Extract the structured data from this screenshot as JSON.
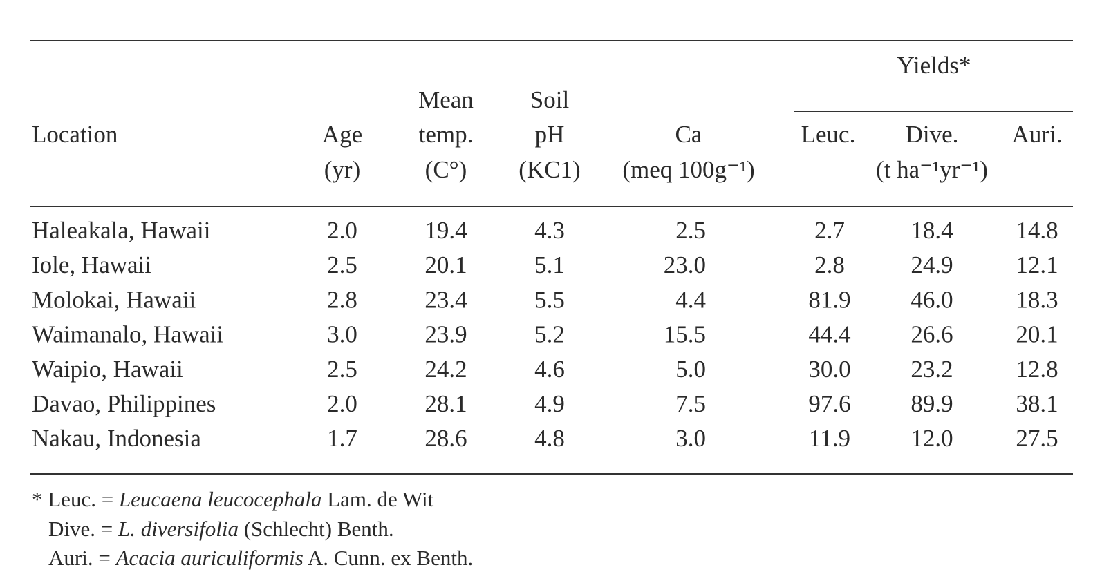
{
  "table": {
    "header": {
      "group": "Yields*",
      "columns": [
        {
          "lines": [
            "Location"
          ]
        },
        {
          "lines": [
            "Age",
            "(yr)"
          ]
        },
        {
          "lines": [
            "Mean",
            "temp.",
            "(C°)"
          ]
        },
        {
          "lines": [
            "Soil",
            "pH",
            "(KC1)"
          ]
        },
        {
          "lines": [
            "Ca",
            "(meq 100g⁻¹)"
          ]
        },
        {
          "lines": [
            "Leuc."
          ]
        },
        {
          "lines": [
            "Dive."
          ]
        },
        {
          "lines": [
            "Auri."
          ]
        }
      ],
      "group_units": "(t ha⁻¹yr⁻¹)"
    },
    "rows": [
      [
        "Haleakala, Hawaii",
        "2.0",
        "19.4",
        "4.3",
        "2.5",
        "2.7",
        "18.4",
        "14.8"
      ],
      [
        "Iole, Hawaii",
        "2.5",
        "20.1",
        "5.1",
        "23.0",
        "2.8",
        "24.9",
        "12.1"
      ],
      [
        "Molokai, Hawaii",
        "2.8",
        "23.4",
        "5.5",
        "4.4",
        "81.9",
        "46.0",
        "18.3"
      ],
      [
        "Waimanalo, Hawaii",
        "3.0",
        "23.9",
        "5.2",
        "15.5",
        "44.4",
        "26.6",
        "20.1"
      ],
      [
        "Waipio, Hawaii",
        "2.5",
        "24.2",
        "4.6",
        "5.0",
        "30.0",
        "23.2",
        "12.8"
      ],
      [
        "Davao, Philippines",
        "2.0",
        "28.1",
        "4.9",
        "7.5",
        "97.6",
        "89.9",
        "38.1"
      ],
      [
        "Nakau, Indonesia",
        "1.7",
        "28.6",
        "4.8",
        "3.0",
        "11.9",
        "12.0",
        "27.5"
      ]
    ]
  },
  "footnotes": [
    {
      "prefix": "* Leuc. = ",
      "italic": "Leucaena leucocephala",
      "suffix": " Lam. de Wit"
    },
    {
      "prefix": "Dive. = ",
      "italic": "L. diversifolia",
      "suffix": " (Schlecht) Benth."
    },
    {
      "prefix": "Auri. = ",
      "italic": "Acacia auriculiformis",
      "suffix": " A. Cunn. ex Benth."
    }
  ]
}
